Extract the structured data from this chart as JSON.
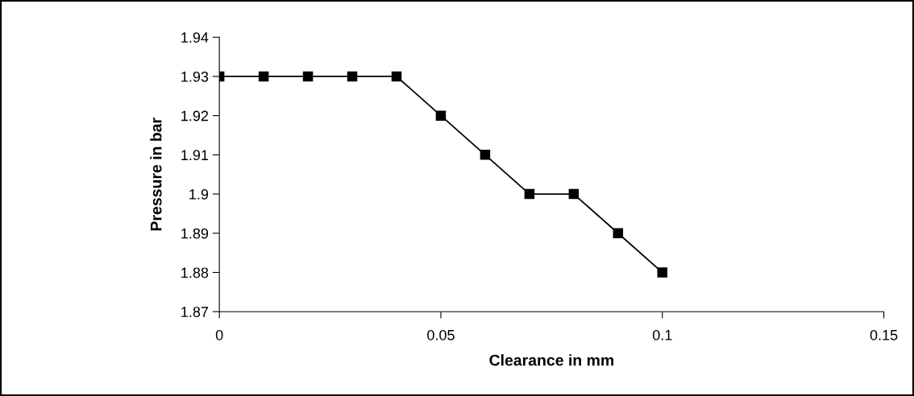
{
  "chart_data": {
    "type": "line",
    "xlabel": "Clearance in mm",
    "ylabel": "Pressure in bar",
    "x": [
      0,
      0.01,
      0.02,
      0.03,
      0.04,
      0.05,
      0.06,
      0.07,
      0.08,
      0.09,
      0.1
    ],
    "series": [
      {
        "color": "#000000",
        "values": [
          1.93,
          1.93,
          1.93,
          1.93,
          1.93,
          1.92,
          1.91,
          1.9,
          1.9,
          1.89,
          1.88
        ]
      }
    ],
    "xlim": [
      0,
      0.15
    ],
    "xticks": [
      0,
      0.05,
      0.1,
      0.15
    ],
    "ylim": [
      1.87,
      1.94
    ],
    "yticks": [
      1.87,
      1.88,
      1.89,
      1.9,
      1.91,
      1.92,
      1.93,
      1.94
    ],
    "marker": "square",
    "line_style": "solid",
    "grid": false,
    "legend": false
  }
}
